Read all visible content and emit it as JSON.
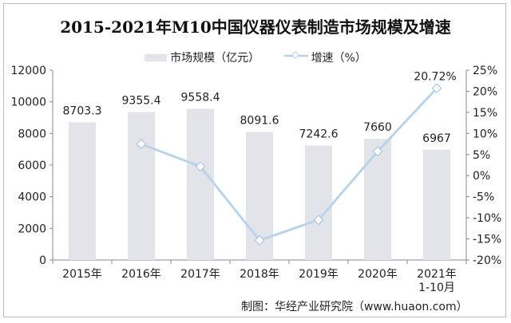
{
  "chart_data": {
    "type": "bar+line",
    "title": "2015-2021年M10中国仪器仪表制造市场规模及增速",
    "categories": [
      "2015年",
      "2016年",
      "2017年",
      "2018年",
      "2019年",
      "2020年",
      "2021年\n1-10月"
    ],
    "series": [
      {
        "name": "市场规模（亿元）",
        "type": "bar",
        "axis": "left",
        "values": [
          8703.3,
          9355.4,
          9558.4,
          8091.6,
          7242.6,
          7660,
          6967
        ],
        "labels": [
          "8703.3",
          "9355.4",
          "9558.4",
          "8091.6",
          "7242.6",
          "7660",
          "6967"
        ]
      },
      {
        "name": "增速（%）",
        "type": "line",
        "axis": "right",
        "values": [
          null,
          7.49,
          2.17,
          -15.35,
          -10.49,
          5.76,
          20.72
        ],
        "labels": [
          "",
          "",
          "",
          "",
          "",
          "",
          "20.72%"
        ]
      }
    ],
    "left_axis": {
      "ylim": [
        0,
        12000
      ],
      "ticks": [
        "0",
        "2000",
        "4000",
        "6000",
        "8000",
        "10000",
        "12000"
      ]
    },
    "right_axis": {
      "ylim": [
        -20,
        25
      ],
      "ticks": [
        "-20%",
        "-15%",
        "-10%",
        "-5%",
        "0%",
        "5%",
        "10%",
        "15%",
        "20%",
        "25%"
      ]
    },
    "legend_placement": "top-center",
    "grid": false,
    "colors": {
      "bar": "#e3e3ea",
      "line": "#b9d4ea"
    }
  },
  "source": "制图：华经产业研究院（www.huaon.com）"
}
